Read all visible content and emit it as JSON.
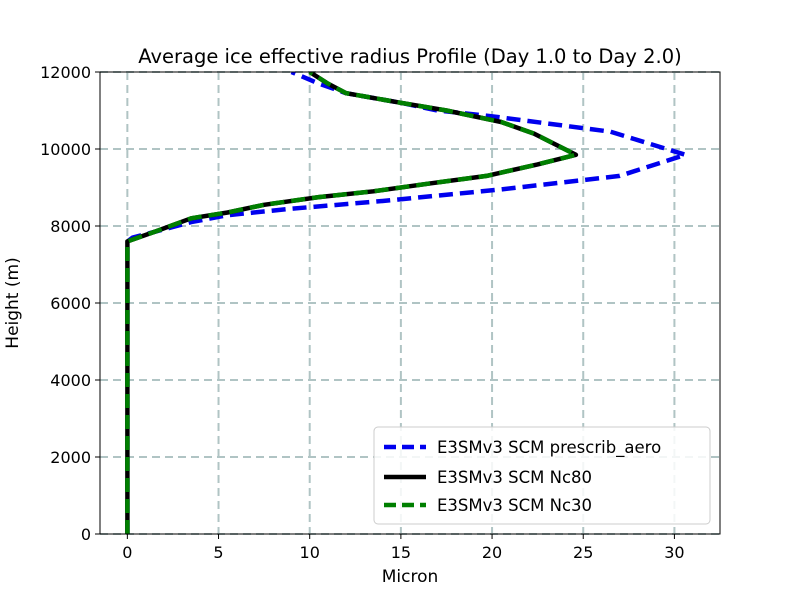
{
  "chart_data": {
    "type": "line",
    "title": "Average ice effective radius Profile (Day 1.0 to Day 2.0)",
    "xlabel": "Micron",
    "ylabel": "Height (m)",
    "xlim": [
      -1.5,
      32.5
    ],
    "ylim": [
      0,
      12000
    ],
    "xticks": [
      0,
      5,
      10,
      15,
      20,
      25,
      30
    ],
    "yticks": [
      0,
      2000,
      4000,
      6000,
      8000,
      10000,
      12000
    ],
    "grid": true,
    "legend_position": "lower-right",
    "series": [
      {
        "name": "E3SMv3 SCM prescrib_aero",
        "color": "#0000ee",
        "style": "dashed",
        "x": [
          0,
          0,
          0.3,
          1.5,
          3.5,
          5.5,
          9,
          14,
          20.5,
          27,
          30.6,
          26.5,
          20,
          17,
          15,
          12,
          10.5,
          9
        ],
        "y": [
          0,
          7600,
          7700,
          7850,
          8100,
          8280,
          8450,
          8650,
          8950,
          9300,
          9850,
          10450,
          10850,
          11000,
          11200,
          11450,
          11700,
          12000
        ]
      },
      {
        "name": "E3SMv3 SCM Nc80",
        "color": "#000000",
        "style": "solid",
        "x": [
          0,
          0,
          1.5,
          3.5,
          5.5,
          7.5,
          10.5,
          13.5,
          16.5,
          19.7,
          22.5,
          24.6,
          22.3,
          20.5,
          17.5,
          15,
          12,
          11,
          10
        ],
        "y": [
          0,
          7600,
          7850,
          8200,
          8350,
          8550,
          8750,
          8900,
          9100,
          9300,
          9600,
          9850,
          10400,
          10700,
          11000,
          11200,
          11450,
          11700,
          12000
        ]
      },
      {
        "name": "E3SMv3 SCM Nc30",
        "color": "#007f00",
        "style": "dashed",
        "x": [
          0,
          0,
          1.5,
          3.5,
          5.5,
          7.5,
          10.5,
          13.5,
          16.5,
          19.7,
          22.5,
          24.6,
          22.3,
          20.5,
          17.5,
          15,
          12,
          11,
          10
        ],
        "y": [
          0,
          7600,
          7850,
          8200,
          8350,
          8550,
          8750,
          8900,
          9100,
          9300,
          9600,
          9850,
          10400,
          10700,
          11000,
          11200,
          11450,
          11700,
          12000
        ]
      }
    ]
  }
}
